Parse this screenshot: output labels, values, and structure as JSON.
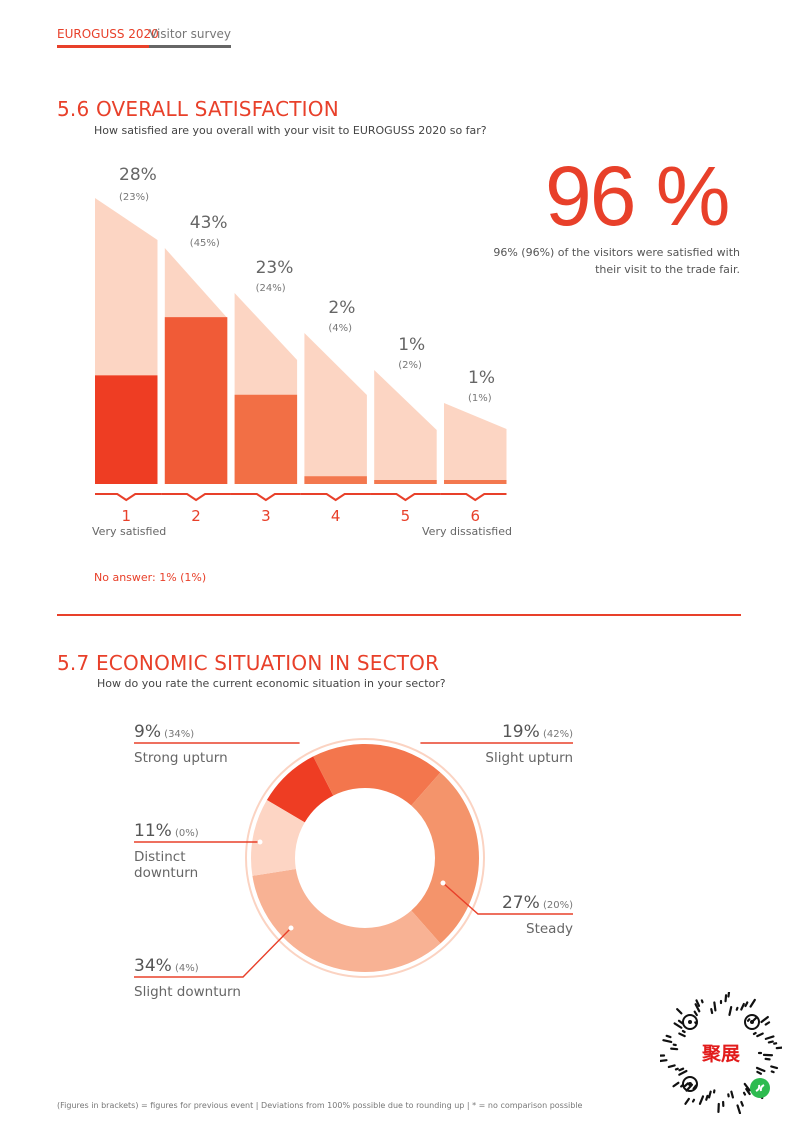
{
  "header": {
    "brand": "EUROGUSS 2020",
    "section": "Visitor survey"
  },
  "section56": {
    "title": "5.6  OVERALL SATISFACTION",
    "question": "How satisfied are you overall with your visit to EUROGUSS 2020 so far?",
    "highlight": "96 %",
    "highlight_text": "96% (96%) of the visitors were satisfied with their visit to the trade fair.",
    "no_answer": "No answer: 1% (1%)"
  },
  "section57": {
    "title": "5.7  ECONOMIC SITUATION IN SECTOR",
    "question": "How do you rate the current economic situation in your sector?"
  },
  "footer": "(Figures in brackets) = figures for previous event | Deviations from 100% possible due to rounding up | * = no comparison possible",
  "logo": {
    "text": "聚展"
  },
  "colors": {
    "accent": "#e8402a",
    "bar_light": "#fcd5c3"
  },
  "chart_data": [
    {
      "type": "bar",
      "categories": [
        "1",
        "2",
        "3",
        "4",
        "5",
        "6"
      ],
      "values": [
        28,
        43,
        23,
        2,
        1,
        1
      ],
      "previous_values": [
        23,
        45,
        24,
        4,
        2,
        1
      ],
      "labels": [
        "28%",
        "43%",
        "23%",
        "2%",
        "1%",
        "1%"
      ],
      "previous_labels": [
        "(23%)",
        "(45%)",
        "(24%)",
        "(4%)",
        "(2%)",
        "(1%)"
      ],
      "scale_left_label": "Very satisfied",
      "scale_right_label": "Very dissatisfied",
      "colors": [
        "#ee3d23",
        "#f05b37",
        "#f26f45",
        "#f3784f",
        "#f3784f",
        "#f3784f"
      ]
    },
    {
      "type": "pie",
      "donut": true,
      "slices": [
        {
          "name": "Strong upturn",
          "value": 9,
          "label": "9%",
          "previous": "(34%)",
          "color": "#ee3d23"
        },
        {
          "name": "Slight upturn",
          "value": 19,
          "label": "19%",
          "previous": "(42%)",
          "color": "#f3764d"
        },
        {
          "name": "Steady",
          "value": 27,
          "label": "27%",
          "previous": "(20%)",
          "color": "#f4946b"
        },
        {
          "name": "Slight downturn",
          "value": 34,
          "label": "34%",
          "previous": "(4%)",
          "color": "#f8b294"
        },
        {
          "name": "Distinct downturn",
          "value": 11,
          "label": "11%",
          "previous": "(0%)",
          "color": "#fdd5c4"
        }
      ]
    }
  ]
}
